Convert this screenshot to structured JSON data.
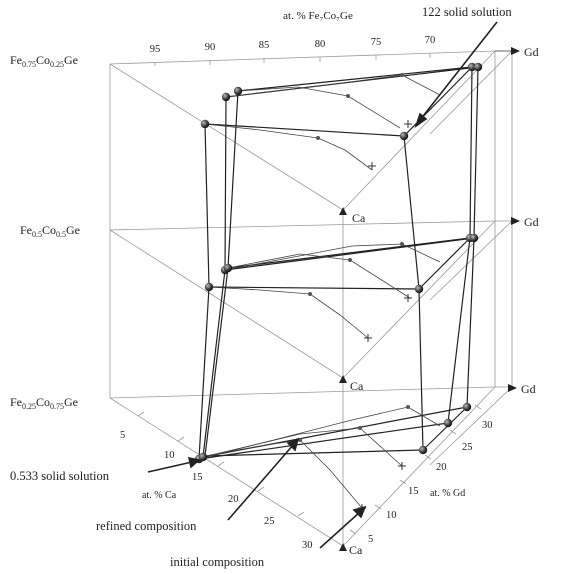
{
  "diagram": {
    "top_axis_title": "at. % Fe₇Co₇Ge",
    "top_ticks": [
      "95",
      "90",
      "85",
      "80",
      "75",
      "70"
    ],
    "levels": [
      {
        "prefix": "Fe",
        "sub1": "0.75",
        "mid": "Co",
        "sub2": "0.25",
        "suffix": "Ge"
      },
      {
        "prefix": "Fe",
        "sub1": "0.5",
        "mid": "Co",
        "sub2": "0.5",
        "suffix": "Ge"
      },
      {
        "prefix": "Fe",
        "sub1": "0.25",
        "mid": "Co",
        "sub2": "0.75",
        "suffix": "Ge"
      }
    ],
    "corner_gd": "Gd",
    "corner_ca": "Ca",
    "ca_axis_title": "at. % Ca",
    "ca_ticks": [
      "5",
      "10",
      "15",
      "20",
      "25",
      "30"
    ],
    "gd_axis_title": "at. % Gd",
    "gd_ticks": [
      "5",
      "10",
      "15",
      "20",
      "25",
      "30"
    ],
    "annotations": {
      "solid_122": "122 solid solution",
      "solid_0533": "0.533 solid solution",
      "refined": "refined composition",
      "initial": "initial composition"
    },
    "colors": {
      "ink": "#222222",
      "axis": "#9a9a9a",
      "marker": "#333333"
    }
  }
}
